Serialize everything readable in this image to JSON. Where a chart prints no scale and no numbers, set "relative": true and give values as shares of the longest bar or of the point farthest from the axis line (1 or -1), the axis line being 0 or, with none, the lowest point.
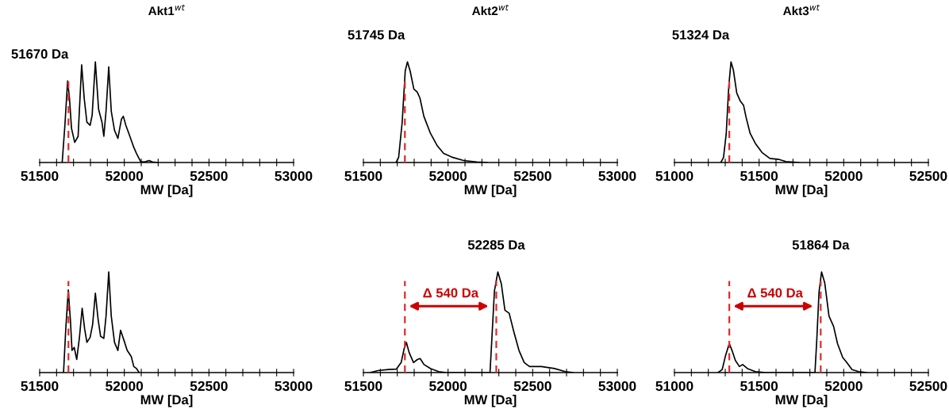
{
  "chart_data": [
    {
      "type": "line",
      "title": "Akt1$^{wt}$",
      "xlabel": "MW [Da]",
      "relative": true,
      "xlim": [
        51500,
        53000
      ],
      "xticks": [
        51500,
        {
          "value": 51600,
          "label": null
        },
        {
          "value": 51700,
          "label": null
        },
        {
          "value": 51800,
          "label": null
        },
        {
          "value": 51900,
          "label": null
        },
        52000,
        {
          "value": 52100,
          "label": null
        },
        {
          "value": 52200,
          "label": null
        },
        {
          "value": 52300,
          "label": null
        },
        {
          "value": 52400,
          "label": null
        },
        52500,
        {
          "value": 52600,
          "label": null
        },
        {
          "value": 52700,
          "label": null
        },
        {
          "value": 52800,
          "label": null
        },
        {
          "value": 52900,
          "label": null
        },
        53000
      ],
      "series": [
        {
          "color": "#000000",
          "x": [
            51633,
            51649,
            51665,
            51676,
            51688,
            51707,
            51727,
            51748,
            51763,
            51779,
            51798,
            51810,
            51829,
            51848,
            51868,
            51879,
            51892,
            51908,
            51923,
            51942,
            51962,
            51983,
            51994,
            52009,
            52033,
            52056,
            52072,
            52096,
            52119,
            52146,
            52166,
            52197
          ],
          "values": [
            0,
            0.37,
            0.81,
            0.64,
            0.34,
            0.2,
            0.26,
            0.97,
            0.64,
            0.4,
            0.37,
            0.47,
            1.0,
            0.53,
            0.4,
            0.26,
            0.51,
            0.95,
            0.51,
            0.32,
            0.24,
            0.43,
            0.46,
            0.37,
            0.26,
            0.15,
            0.09,
            0.01,
            0.005,
            0.02,
            0.005,
            0
          ]
        }
      ],
      "ref_lines": [
        {
          "axis": "x",
          "value": 51670,
          "color": "#e02b2b",
          "line_style": "dashed"
        }
      ],
      "annotations": [
        {
          "text": "51670 Da",
          "x": 51670,
          "y": 0.81
        }
      ]
    },
    {
      "type": "line",
      "title": "Akt2$^{wt}$",
      "xlabel": "MW [Da]",
      "relative": true,
      "xlim": [
        51500,
        53000
      ],
      "xticks": [
        51500,
        {
          "value": 51600,
          "label": null
        },
        {
          "value": 51700,
          "label": null
        },
        {
          "value": 51800,
          "label": null
        },
        {
          "value": 51900,
          "label": null
        },
        52000,
        {
          "value": 52100,
          "label": null
        },
        {
          "value": 52200,
          "label": null
        },
        {
          "value": 52300,
          "label": null
        },
        {
          "value": 52400,
          "label": null
        },
        52500,
        {
          "value": 52600,
          "label": null
        },
        {
          "value": 52700,
          "label": null
        },
        {
          "value": 52800,
          "label": null
        },
        {
          "value": 52900,
          "label": null
        },
        53000
      ],
      "series": [
        {
          "color": "#000000",
          "x": [
            51693,
            51708,
            51729,
            51747,
            51760,
            51776,
            51798,
            51818,
            51834,
            51857,
            51896,
            51935,
            51974,
            52029,
            52092,
            52170,
            52233
          ],
          "values": [
            0,
            0.05,
            0.4,
            0.91,
            1.0,
            0.91,
            0.73,
            0.7,
            0.64,
            0.46,
            0.29,
            0.17,
            0.09,
            0.05,
            0.02,
            0.006,
            0
          ]
        }
      ],
      "ref_lines": [
        {
          "axis": "x",
          "value": 51745,
          "color": "#e02b2b",
          "line_style": "dashed"
        }
      ],
      "annotations": [
        {
          "text": "51745 Da",
          "x": 51745,
          "y": 1.0
        }
      ]
    },
    {
      "type": "line",
      "title": "Akt3$^{wt}$",
      "xlabel": "MW [Da]",
      "relative": true,
      "xlim": [
        51000,
        52500
      ],
      "xticks": [
        51000,
        {
          "value": 51100,
          "label": null
        },
        {
          "value": 51200,
          "label": null
        },
        {
          "value": 51300,
          "label": null
        },
        {
          "value": 51400,
          "label": null
        },
        51500,
        {
          "value": 51600,
          "label": null
        },
        {
          "value": 51700,
          "label": null
        },
        {
          "value": 51800,
          "label": null
        },
        {
          "value": 51900,
          "label": null
        },
        52000,
        {
          "value": 52100,
          "label": null
        },
        {
          "value": 52200,
          "label": null
        },
        {
          "value": 52300,
          "label": null
        },
        {
          "value": 52400,
          "label": null
        },
        52500
      ],
      "series": [
        {
          "color": "#000000",
          "x": [
            51274,
            51290,
            51306,
            51321,
            51334,
            51348,
            51368,
            51389,
            51408,
            51423,
            51447,
            51478,
            51517,
            51564,
            51619,
            51658,
            51737
          ],
          "values": [
            0,
            0.05,
            0.29,
            0.76,
            1.0,
            0.92,
            0.69,
            0.61,
            0.57,
            0.45,
            0.29,
            0.19,
            0.1,
            0.04,
            0.03,
            0.01,
            0
          ]
        }
      ],
      "ref_lines": [
        {
          "axis": "x",
          "value": 51324,
          "color": "#e02b2b",
          "line_style": "dashed"
        }
      ],
      "annotations": [
        {
          "text": "51324 Da",
          "x": 51324,
          "y": 1.0
        }
      ]
    },
    {
      "type": "line",
      "xlabel": "MW [Da]",
      "relative": true,
      "xlim": [
        51500,
        53000
      ],
      "xticks": [
        51500,
        {
          "value": 51600,
          "label": null
        },
        {
          "value": 51700,
          "label": null
        },
        {
          "value": 51800,
          "label": null
        },
        {
          "value": 51900,
          "label": null
        },
        52000,
        {
          "value": 52100,
          "label": null
        },
        {
          "value": 52200,
          "label": null
        },
        {
          "value": 52300,
          "label": null
        },
        {
          "value": 52400,
          "label": null
        },
        52500,
        {
          "value": 52600,
          "label": null
        },
        {
          "value": 52700,
          "label": null
        },
        {
          "value": 52800,
          "label": null
        },
        {
          "value": 52900,
          "label": null
        },
        53000
      ],
      "series": [
        {
          "color": "#000000",
          "x": [
            51641,
            51654,
            51669,
            51682,
            51691,
            51704,
            51719,
            51735,
            51751,
            51766,
            51779,
            51798,
            51813,
            51829,
            51845,
            51860,
            51879,
            51892,
            51908,
            51923,
            51942,
            51962,
            51978,
            51998,
            52017,
            52041,
            52056,
            52072,
            52088
          ],
          "values": [
            0,
            0.43,
            0.82,
            0.51,
            0.22,
            0.25,
            0.13,
            0.35,
            0.64,
            0.43,
            0.3,
            0.35,
            0.48,
            0.79,
            0.53,
            0.36,
            0.34,
            0.56,
            1.0,
            0.56,
            0.3,
            0.22,
            0.42,
            0.32,
            0.22,
            0.16,
            0.06,
            0.04,
            0
          ]
        }
      ],
      "ref_lines": [
        {
          "axis": "x",
          "value": 51670,
          "color": "#e02b2b",
          "line_style": "dashed"
        }
      ]
    },
    {
      "type": "line",
      "xlabel": "MW [Da]",
      "relative": true,
      "xlim": [
        51500,
        53000
      ],
      "xticks": [
        51500,
        {
          "value": 51600,
          "label": null
        },
        {
          "value": 51700,
          "label": null
        },
        {
          "value": 51800,
          "label": null
        },
        {
          "value": 51900,
          "label": null
        },
        52000,
        {
          "value": 52100,
          "label": null
        },
        {
          "value": 52200,
          "label": null
        },
        {
          "value": 52300,
          "label": null
        },
        {
          "value": 52400,
          "label": null
        },
        52500,
        {
          "value": 52600,
          "label": null
        },
        {
          "value": 52700,
          "label": null
        },
        {
          "value": 52800,
          "label": null
        },
        {
          "value": 52900,
          "label": null
        },
        53000
      ],
      "series": [
        {
          "color": "#000000",
          "x": [
            51539,
            51586,
            51648,
            51695,
            51723,
            51741,
            51754,
            51770,
            51796,
            51819,
            51835,
            51858,
            51897,
            51944,
            51991,
            52248,
            52259,
            52274,
            52294,
            52315,
            52336,
            52361,
            52388,
            52419,
            52450,
            52481,
            52551,
            52629,
            52692,
            52738
          ],
          "values": [
            0,
            0.02,
            0.03,
            0.035,
            0.1,
            0.24,
            0.3,
            0.2,
            0.1,
            0.13,
            0.14,
            0.08,
            0.04,
            0.01,
            0,
            0,
            0.34,
            0.81,
            1.0,
            0.88,
            0.62,
            0.59,
            0.41,
            0.22,
            0.1,
            0.06,
            0.06,
            0.04,
            0.01,
            0
          ]
        }
      ],
      "ref_lines": [
        {
          "axis": "x",
          "value": 51745,
          "color": "#e02b2b",
          "line_style": "dashed"
        },
        {
          "axis": "x",
          "value": 52285,
          "color": "#e02b2b",
          "line_style": "dashed"
        }
      ],
      "annotations": [
        {
          "text": "52285 Da",
          "x": 52285,
          "y": 1.0
        },
        "Δ 540 Da"
      ]
    },
    {
      "type": "line",
      "xlabel": "MW [Da]",
      "relative": true,
      "xlim": [
        51000,
        52500
      ],
      "xticks": [
        51000,
        {
          "value": 51100,
          "label": null
        },
        {
          "value": 51200,
          "label": null
        },
        {
          "value": 51300,
          "label": null
        },
        {
          "value": 51400,
          "label": null
        },
        51500,
        {
          "value": 51600,
          "label": null
        },
        {
          "value": 51700,
          "label": null
        },
        {
          "value": 51800,
          "label": null
        },
        {
          "value": 51900,
          "label": null
        },
        52000,
        {
          "value": 52100,
          "label": null
        },
        {
          "value": 52200,
          "label": null
        },
        {
          "value": 52300,
          "label": null
        },
        {
          "value": 52400,
          "label": null
        },
        52500
      ],
      "series": [
        {
          "color": "#000000",
          "x": [
            51258,
            51282,
            51302,
            51324,
            51340,
            51360,
            51384,
            51403,
            51431,
            51478,
            51540,
            51830,
            51841,
            51854,
            51869,
            51888,
            51913,
            51940,
            51963,
            51994,
            52018,
            52049,
            52088,
            52135
          ],
          "values": [
            0,
            0.03,
            0.17,
            0.29,
            0.22,
            0.12,
            0.06,
            0.08,
            0.04,
            0.01,
            0,
            0,
            0.33,
            0.8,
            1.0,
            0.89,
            0.56,
            0.46,
            0.29,
            0.15,
            0.1,
            0.03,
            0.01,
            0
          ]
        }
      ],
      "ref_lines": [
        {
          "axis": "x",
          "value": 51324,
          "color": "#e02b2b",
          "line_style": "dashed"
        },
        {
          "axis": "x",
          "value": 51864,
          "color": "#e02b2b",
          "line_style": "dashed"
        }
      ],
      "annotations": [
        {
          "text": "51864 Da",
          "x": 51864,
          "y": 1.0
        },
        "Δ 540 Da"
      ]
    }
  ]
}
